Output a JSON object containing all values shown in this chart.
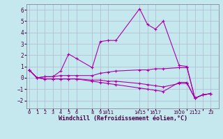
{
  "xlabel": "Windchill (Refroidissement éolien,°C)",
  "background_color": "#c5e8ee",
  "grid_color": "#b0b8d0",
  "line_color": "#aa00aa",
  "x_values": [
    0,
    1,
    2,
    3,
    4,
    5,
    6,
    8,
    9,
    10,
    11,
    14,
    15,
    16,
    17,
    19,
    20,
    21,
    22,
    23
  ],
  "series": [
    [
      0.7,
      0.0,
      0.1,
      0.1,
      0.6,
      2.1,
      1.7,
      0.9,
      3.2,
      3.3,
      3.3,
      6.1,
      4.7,
      4.3,
      5.0,
      1.1,
      1.0,
      -1.8,
      -1.5,
      -1.4
    ],
    [
      0.7,
      0.0,
      0.1,
      0.1,
      0.2,
      0.2,
      0.2,
      0.2,
      0.4,
      0.5,
      0.6,
      0.7,
      0.7,
      0.8,
      0.8,
      0.9,
      0.9,
      -1.8,
      -1.5,
      -1.4
    ],
    [
      0.7,
      0.0,
      -0.1,
      -0.1,
      -0.1,
      -0.1,
      -0.1,
      -0.2,
      -0.2,
      -0.3,
      -0.3,
      -0.5,
      -0.6,
      -0.7,
      -0.8,
      -0.5,
      -0.5,
      -1.8,
      -1.5,
      -1.4
    ],
    [
      0.7,
      0.0,
      -0.1,
      -0.1,
      -0.1,
      -0.1,
      -0.1,
      -0.3,
      -0.4,
      -0.5,
      -0.6,
      -0.9,
      -1.0,
      -1.1,
      -1.2,
      -0.4,
      -0.4,
      -1.8,
      -1.5,
      -1.4
    ]
  ],
  "yticks": [
    -2,
    -1,
    0,
    1,
    2,
    3,
    4,
    5,
    6
  ],
  "ylim": [
    -2.7,
    6.5
  ],
  "xlim": [
    -0.3,
    24.0
  ],
  "xtick_grouped_positions": [
    0,
    1,
    2,
    3,
    4,
    5,
    6,
    8,
    9,
    10,
    14,
    15,
    16,
    19,
    20,
    21,
    22,
    23
  ],
  "xtick_grouped_labels": [
    "0",
    "1",
    "2",
    "3",
    "4",
    "5",
    "6",
    "8",
    "9",
    "1011",
    "1415",
    "",
    "1617",
    "1920",
    "",
    "2122",
    "",
    "23"
  ]
}
